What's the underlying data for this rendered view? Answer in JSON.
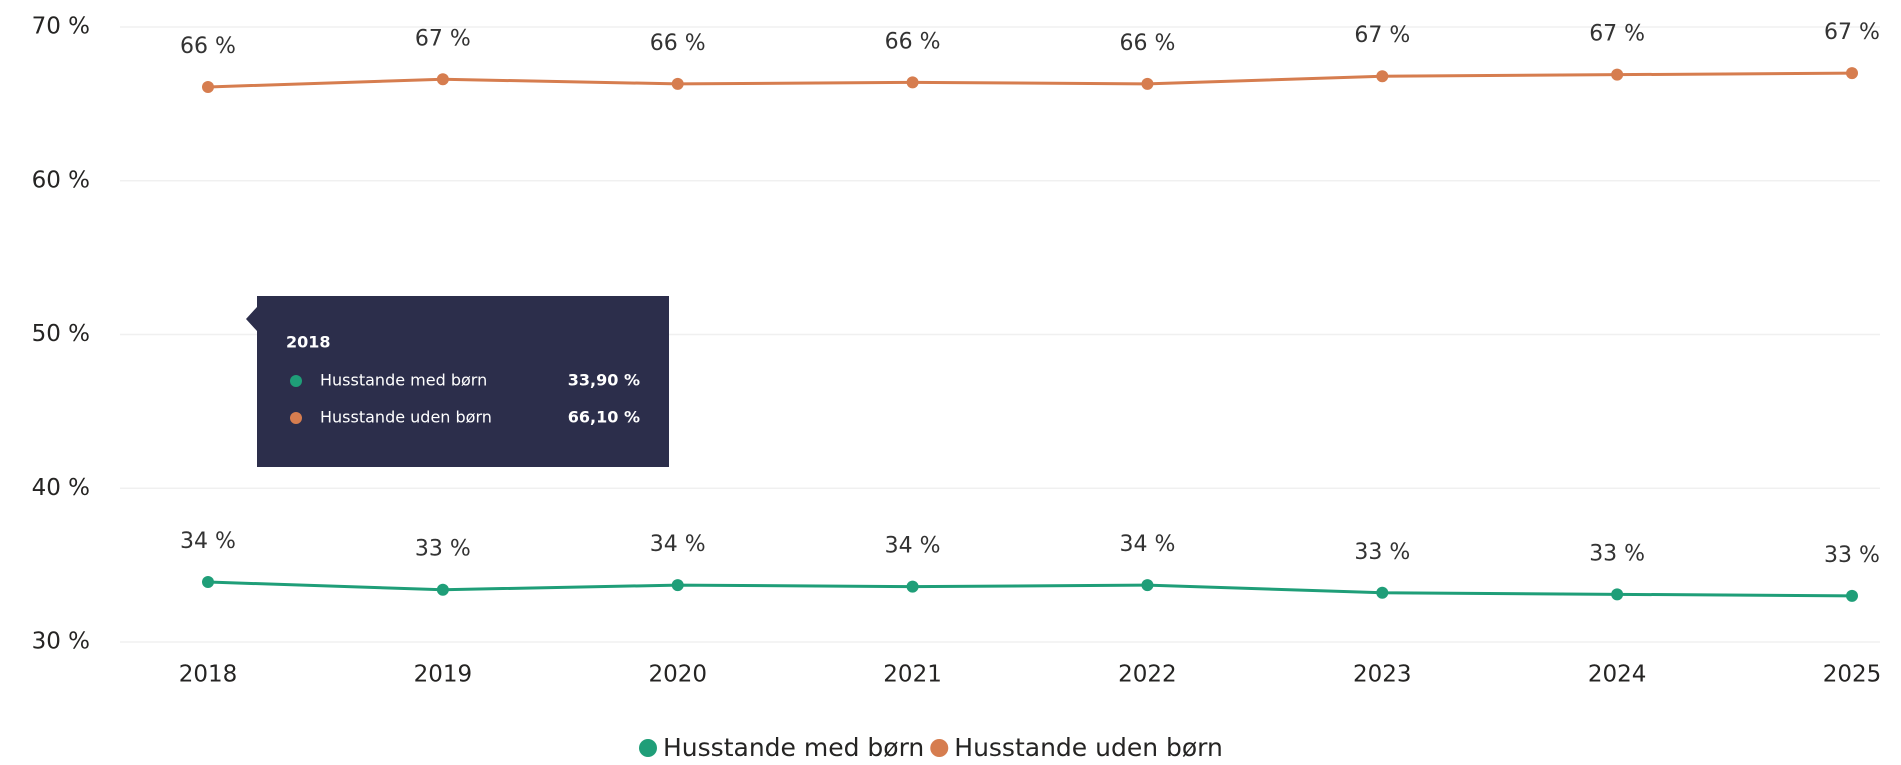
{
  "chart_data": {
    "type": "line",
    "categories": [
      "2018",
      "2019",
      "2020",
      "2021",
      "2022",
      "2023",
      "2024",
      "2025"
    ],
    "series": [
      {
        "name": "Husstande med børn",
        "color": "#1f9e78",
        "values": [
          33.9,
          33.4,
          33.7,
          33.6,
          33.7,
          33.2,
          33.1,
          33.0
        ],
        "value_labels": [
          "34 %",
          "33 %",
          "34 %",
          "34 %",
          "34 %",
          "33 %",
          "33 %",
          "33 %"
        ]
      },
      {
        "name": "Husstande uden børn",
        "color": "#d67d4f",
        "values": [
          66.1,
          66.6,
          66.3,
          66.4,
          66.3,
          66.8,
          66.9,
          67.0
        ],
        "value_labels": [
          "66 %",
          "67 %",
          "66 %",
          "66 %",
          "66 %",
          "67 %",
          "67 %",
          "67 %"
        ]
      }
    ],
    "ylim": [
      30,
      70
    ],
    "yticks": [
      {
        "value": 30,
        "label": "30 %"
      },
      {
        "value": 40,
        "label": "40 %"
      },
      {
        "value": 50,
        "label": "50 %"
      },
      {
        "value": 60,
        "label": "60 %"
      },
      {
        "value": 70,
        "label": "70 %"
      }
    ],
    "grid": true,
    "legend": "bottom",
    "tooltip": {
      "value_labels": [
        "33,90 %",
        "66,10 %"
      ]
    }
  }
}
